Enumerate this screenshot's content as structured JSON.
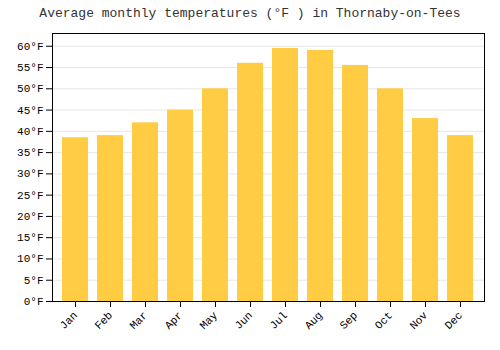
{
  "chart_data": {
    "type": "bar",
    "title": "Average monthly temperatures (°F ) in Thornaby-on-Tees",
    "categories": [
      "Jan",
      "Feb",
      "Mar",
      "Apr",
      "May",
      "Jun",
      "Jul",
      "Aug",
      "Sep",
      "Oct",
      "Nov",
      "Dec"
    ],
    "values": [
      38.5,
      39.0,
      42.0,
      45.0,
      50.0,
      56.0,
      59.5,
      59.0,
      55.5,
      50.0,
      43.0,
      39.0
    ],
    "color": "#FFCC44",
    "ylim": [
      0,
      63
    ],
    "yticks": [
      {
        "value": 0,
        "label": "0°F"
      },
      {
        "value": 5,
        "label": "5°F"
      },
      {
        "value": 10,
        "label": "10°F"
      },
      {
        "value": 15,
        "label": "15°F"
      },
      {
        "value": 20,
        "label": "20°F"
      },
      {
        "value": 25,
        "label": "25°F"
      },
      {
        "value": 30,
        "label": "30°F"
      },
      {
        "value": 35,
        "label": "35°F"
      },
      {
        "value": 40,
        "label": "40°F"
      },
      {
        "value": 45,
        "label": "45°F"
      },
      {
        "value": 50,
        "label": "50°F"
      },
      {
        "value": 55,
        "label": "55°F"
      },
      {
        "value": 60,
        "label": "60°F"
      }
    ],
    "grid": true
  }
}
